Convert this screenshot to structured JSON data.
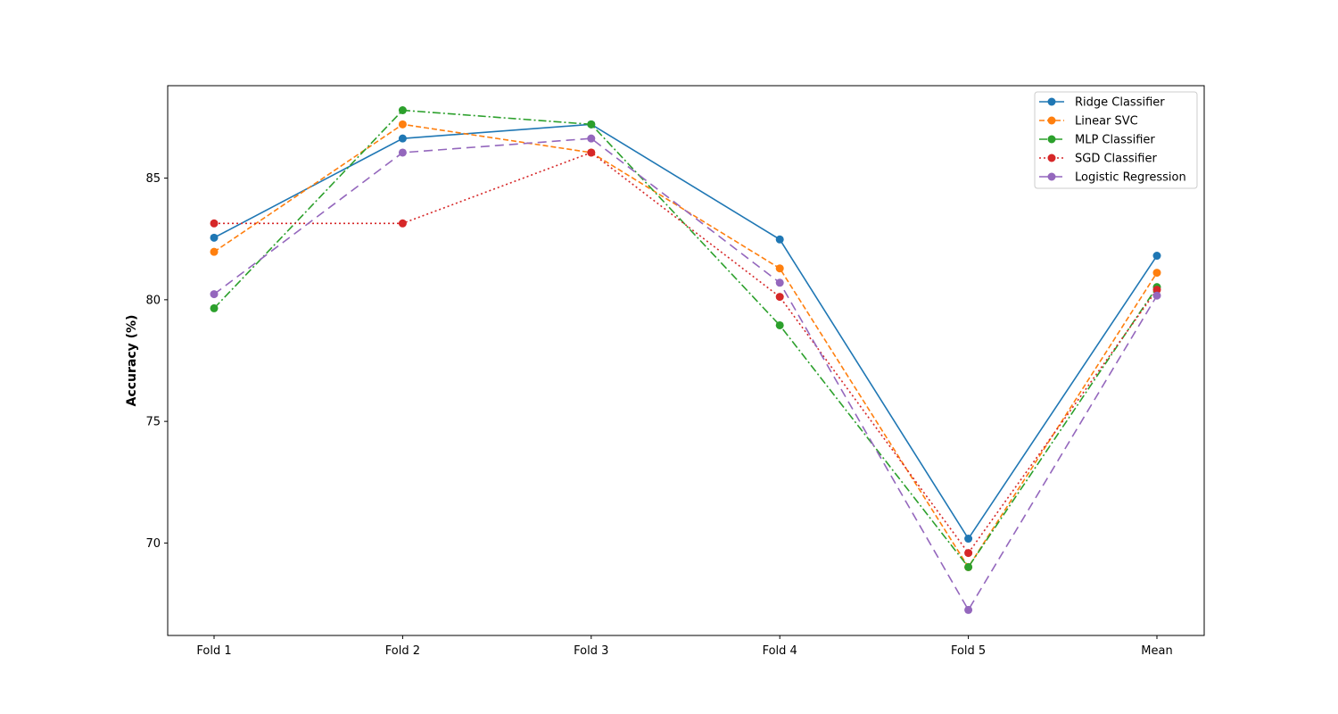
{
  "chart_data": {
    "type": "line",
    "title": "",
    "xlabel": "",
    "ylabel": "Accuracy (%)",
    "categories": [
      "Fold 1",
      "Fold 2",
      "Fold 3",
      "Fold 4",
      "Fold 5",
      "Mean"
    ],
    "ylim": [
      66.2,
      88.8
    ],
    "yticks": [
      70,
      75,
      80,
      85
    ],
    "grid": false,
    "legend_position": "top-right",
    "series": [
      {
        "name": "Ridge Classifier",
        "color": "#1f77b4",
        "linestyle": "solid",
        "values": [
          82.55,
          86.63,
          87.21,
          82.48,
          70.18,
          81.81
        ]
      },
      {
        "name": "Linear SVC",
        "color": "#ff7f0e",
        "linestyle": "dashed",
        "values": [
          81.97,
          87.21,
          86.05,
          81.29,
          69.01,
          81.11
        ]
      },
      {
        "name": "MLP Classifier",
        "color": "#2ca02c",
        "linestyle": "dashdot",
        "values": [
          79.65,
          87.79,
          87.21,
          78.95,
          69.01,
          80.52
        ]
      },
      {
        "name": "SGD Classifier",
        "color": "#d62728",
        "linestyle": "dotted",
        "values": [
          83.14,
          83.14,
          86.05,
          80.12,
          69.59,
          80.41
        ]
      },
      {
        "name": "Logistic Regression",
        "color": "#9467bd",
        "linestyle": "longdash",
        "values": [
          80.23,
          86.05,
          86.63,
          80.7,
          67.25,
          80.17
        ]
      }
    ]
  }
}
